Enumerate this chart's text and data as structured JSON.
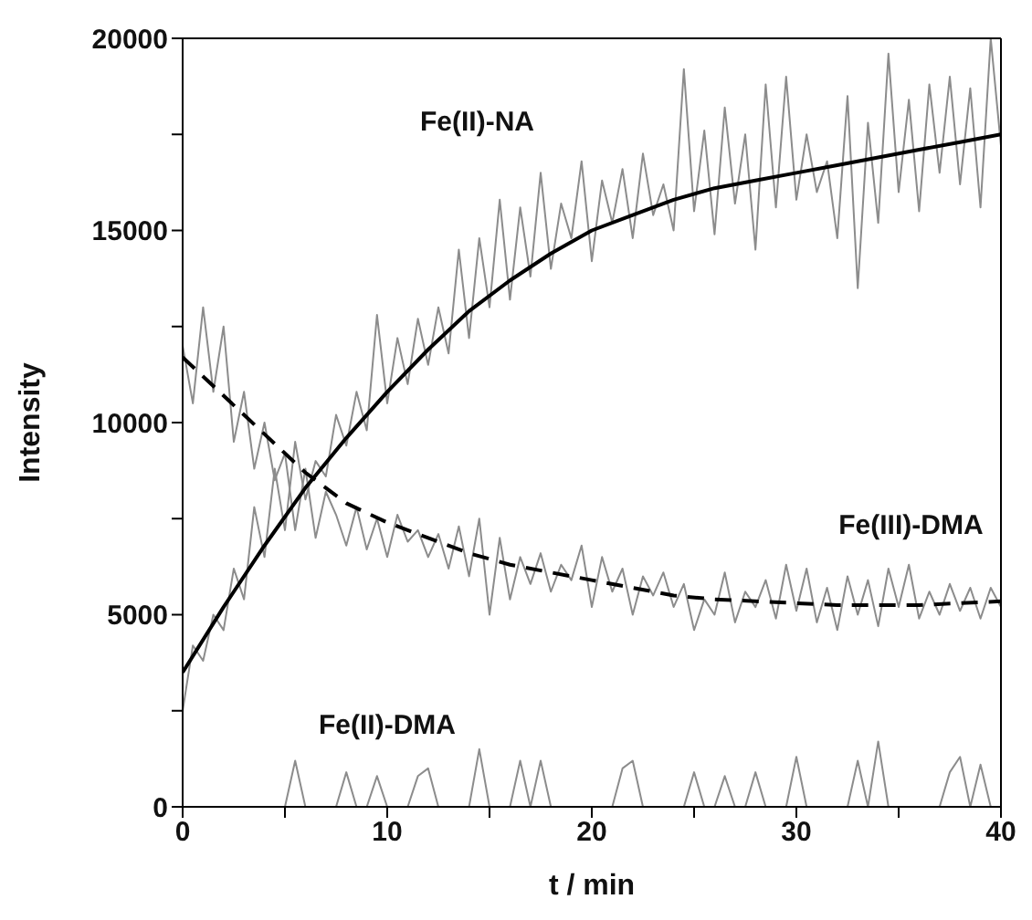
{
  "chart_data": {
    "type": "line",
    "xlabel": "t / min",
    "ylabel": "Intensity",
    "x": [
      0,
      0.5,
      1,
      1.5,
      2,
      2.5,
      3,
      3.5,
      4,
      4.5,
      5,
      5.5,
      6,
      6.5,
      7,
      7.5,
      8,
      8.5,
      9,
      9.5,
      10,
      10.5,
      11,
      11.5,
      12,
      12.5,
      13,
      13.5,
      14,
      14.5,
      15,
      15.5,
      16,
      16.5,
      17,
      17.5,
      18,
      18.5,
      19,
      19.5,
      20,
      20.5,
      21,
      21.5,
      22,
      22.5,
      23,
      23.5,
      24,
      24.5,
      25,
      25.5,
      26,
      26.5,
      27,
      27.5,
      28,
      28.5,
      29,
      29.5,
      30,
      30.5,
      31,
      31.5,
      32,
      32.5,
      33,
      33.5,
      34,
      34.5,
      35,
      35.5,
      36,
      36.5,
      37,
      37.5,
      38,
      38.5,
      39,
      39.5,
      40
    ],
    "series": [
      {
        "name": "Fe(II)-NA",
        "color": "#8c8c8c",
        "values": [
          2500,
          4200,
          3800,
          5000,
          4600,
          6200,
          5400,
          7800,
          6500,
          8800,
          7200,
          9500,
          8000,
          9000,
          8600,
          10200,
          9400,
          10800,
          9800,
          12800,
          10500,
          12200,
          11000,
          12700,
          11500,
          13000,
          11800,
          14500,
          12200,
          14800,
          13000,
          15800,
          13200,
          15600,
          13800,
          16500,
          14000,
          15700,
          14800,
          16800,
          14200,
          16300,
          15200,
          16600,
          14800,
          17000,
          15400,
          16200,
          15000,
          19200,
          15500,
          17600,
          14900,
          18200,
          15700,
          17500,
          14500,
          18800,
          15600,
          19000,
          15800,
          17500,
          16000,
          16800,
          14800,
          18500,
          13500,
          17800,
          15200,
          19600,
          16000,
          18400,
          15500,
          18800,
          16500,
          19000,
          16200,
          18700,
          15600,
          20000,
          17200
        ]
      },
      {
        "name": "Fe(III)-DMA",
        "color": "#8c8c8c",
        "values": [
          12000,
          10500,
          13000,
          10800,
          12500,
          9500,
          10800,
          8800,
          10000,
          8500,
          9200,
          7200,
          8800,
          7000,
          8200,
          7600,
          6800,
          7800,
          6700,
          7500,
          6500,
          7600,
          6900,
          7200,
          6500,
          7100,
          6200,
          7300,
          6000,
          7500,
          5000,
          7000,
          5400,
          6500,
          5800,
          6600,
          5600,
          6300,
          5900,
          6800,
          5200,
          6500,
          5600,
          6200,
          5000,
          6000,
          5500,
          6100,
          5200,
          5800,
          4600,
          5400,
          5000,
          6100,
          4800,
          5600,
          5200,
          5900,
          4900,
          6300,
          5100,
          6200,
          4800,
          5700,
          4600,
          6000,
          5000,
          5900,
          4700,
          6200,
          5200,
          6300,
          4900,
          5600,
          5000,
          5800,
          5100,
          5700,
          4900,
          5700,
          5200
        ]
      },
      {
        "name": "Fe(II)-DMA",
        "color": "#8c8c8c",
        "values": [
          0,
          0,
          0,
          0,
          0,
          0,
          0,
          0,
          0,
          0,
          0,
          1200,
          0,
          0,
          0,
          0,
          900,
          0,
          0,
          800,
          0,
          0,
          0,
          800,
          1000,
          0,
          0,
          0,
          0,
          1500,
          0,
          0,
          0,
          1200,
          0,
          1200,
          0,
          0,
          0,
          0,
          0,
          0,
          0,
          1000,
          1200,
          0,
          0,
          0,
          0,
          0,
          900,
          0,
          0,
          800,
          0,
          0,
          900,
          0,
          0,
          0,
          1300,
          0,
          0,
          0,
          0,
          0,
          1200,
          0,
          1700,
          0,
          0,
          0,
          0,
          0,
          0,
          900,
          1300,
          0,
          1100,
          0,
          0
        ]
      },
      {
        "color": "#000000",
        "x": [
          0,
          2,
          4,
          6,
          8,
          10,
          12,
          14,
          16,
          18,
          20,
          22,
          24,
          26,
          28,
          30,
          32,
          34,
          36,
          38,
          40
        ],
        "values": [
          3500,
          5200,
          6800,
          8300,
          9600,
          10800,
          11900,
          12900,
          13700,
          14400,
          15000,
          15400,
          15800,
          16100,
          16300,
          16500,
          16700,
          16900,
          17100,
          17300,
          17500
        ]
      },
      {
        "color": "#000000",
        "line_style": "dashed",
        "x": [
          0,
          2,
          4,
          6,
          8,
          10,
          12,
          14,
          16,
          18,
          20,
          22,
          24,
          26,
          28,
          30,
          32,
          34,
          36,
          38,
          40
        ],
        "values": [
          11700,
          10700,
          9700,
          8700,
          7900,
          7400,
          7000,
          6600,
          6300,
          6100,
          5900,
          5700,
          5500,
          5400,
          5350,
          5300,
          5250,
          5250,
          5250,
          5300,
          5350
        ]
      }
    ],
    "xlim": [
      0,
      40
    ],
    "xticks": [
      0,
      {
        "value": 5,
        "label": null
      },
      10,
      {
        "value": 15,
        "label": null
      },
      20,
      {
        "value": 25,
        "label": null
      },
      30,
      {
        "value": 35,
        "label": null
      },
      40
    ],
    "ylim": [
      0,
      20000
    ],
    "yticks": [
      0,
      {
        "value": 2500,
        "label": null
      },
      5000,
      {
        "value": 7500,
        "label": null
      },
      10000,
      {
        "value": 12500,
        "label": null
      },
      15000,
      {
        "value": 17500,
        "label": null
      },
      20000
    ],
    "marker": "none"
  }
}
